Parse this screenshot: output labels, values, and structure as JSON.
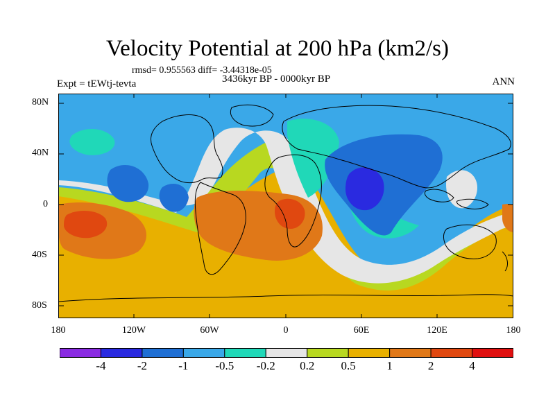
{
  "title": "Velocity Potential at 200 hPa (km2/s)",
  "stats": "rmsd= 0.955563 diff= -3.44318e-05",
  "experiment": "Expt = tEWtj-tevta",
  "period": "3436kyr BP - 0000kyr BP",
  "season": "ANN",
  "lat_labels": [
    "80N",
    "40N",
    "0",
    "40S",
    "80S"
  ],
  "lon_labels": [
    "180",
    "120W",
    "60W",
    "0",
    "60E",
    "120E",
    "180"
  ],
  "colorbar": {
    "colors": [
      "#8a2be2",
      "#2a2ae0",
      "#1f6fd4",
      "#3aa8e8",
      "#20d8b8",
      "#e6e6e6",
      "#b8d820",
      "#e8b000",
      "#e07818",
      "#e04810",
      "#e01010"
    ],
    "labels": [
      "-4",
      "-2",
      "-1",
      "-0.5",
      "-0.2",
      "0.2",
      "0.5",
      "1",
      "2",
      "4"
    ]
  },
  "palette": {
    "cyan": "#3aa8e8",
    "blue": "#1f6fd4",
    "deep_blue": "#2a2ae0",
    "teal": "#20d8b8",
    "neutral": "#e6e6e6",
    "lime": "#b8d820",
    "yellow": "#e8b000",
    "orange": "#e07818",
    "red": "#e04810"
  }
}
